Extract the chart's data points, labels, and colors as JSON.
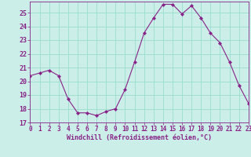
{
  "x": [
    0,
    1,
    2,
    3,
    4,
    5,
    6,
    7,
    8,
    9,
    10,
    11,
    12,
    13,
    14,
    15,
    16,
    17,
    18,
    19,
    20,
    21,
    22,
    23
  ],
  "y": [
    20.4,
    20.6,
    20.8,
    20.4,
    18.7,
    17.7,
    17.7,
    17.5,
    17.8,
    18.0,
    19.4,
    21.4,
    23.5,
    24.6,
    25.6,
    25.6,
    24.9,
    25.5,
    24.6,
    23.5,
    22.8,
    21.4,
    19.7,
    18.4
  ],
  "line_color": "#882288",
  "marker": "D",
  "marker_size": 2.2,
  "bg_color": "#cceee8",
  "grid_color": "#99ddcc",
  "xlabel": "Windchill (Refroidissement éolien,°C)",
  "xlabel_color": "#882288",
  "tick_color": "#882288",
  "ylim": [
    17,
    25.8
  ],
  "xlim": [
    0,
    23
  ],
  "yticks": [
    17,
    18,
    19,
    20,
    21,
    22,
    23,
    24,
    25
  ],
  "xticks": [
    0,
    1,
    2,
    3,
    4,
    5,
    6,
    7,
    8,
    9,
    10,
    11,
    12,
    13,
    14,
    15,
    16,
    17,
    18,
    19,
    20,
    21,
    22,
    23
  ],
  "tick_fontsize": 5.5,
  "xlabel_fontsize": 6.0,
  "ytick_fontsize": 6.0
}
